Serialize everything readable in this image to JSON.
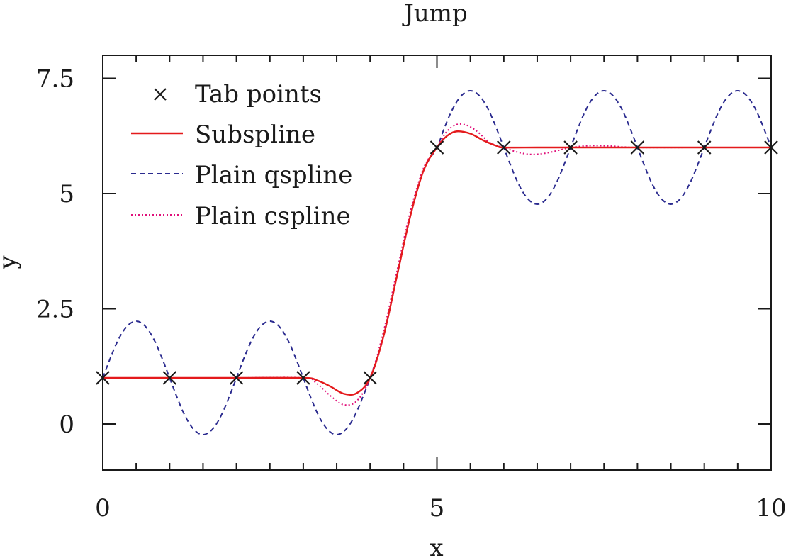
{
  "chart_data": {
    "type": "line",
    "title": "Jump",
    "xlabel": "x",
    "ylabel": "y",
    "xlim": [
      0,
      10
    ],
    "ylim": [
      -1,
      8
    ],
    "x_ticks": [
      0,
      5,
      10
    ],
    "x_tick_labels": [
      "0",
      "5",
      "10"
    ],
    "x_minor_ticks": [
      0.5,
      1,
      1.5,
      2,
      2.5,
      3,
      3.5,
      4,
      4.5,
      5.5,
      6,
      6.5,
      7,
      7.5,
      8,
      8.5,
      9,
      9.5
    ],
    "y_ticks": [
      0,
      2.5,
      5,
      7.5
    ],
    "y_tick_labels": [
      "0",
      "2.5",
      "5",
      "7.5"
    ],
    "grid": false,
    "legend_position": "top-left",
    "series": [
      {
        "name": "Tab points",
        "kind": "markers",
        "marker": "x",
        "color": "#1a1a1a",
        "x": [
          0,
          1,
          2,
          3,
          4,
          5,
          6,
          7,
          8,
          9,
          10
        ],
        "y": [
          1,
          1,
          1,
          1,
          1,
          6,
          6,
          6,
          6,
          6,
          6
        ]
      },
      {
        "name": "Subspline",
        "kind": "line",
        "dash": "solid",
        "color": "#e41a1c",
        "x": [
          0,
          1,
          2,
          3,
          3.2,
          3.4,
          3.6,
          3.8,
          4,
          4.2,
          4.4,
          4.6,
          4.8,
          5,
          5.15,
          5.3,
          5.5,
          5.7,
          5.9,
          6,
          6.5,
          7,
          8,
          9,
          10
        ],
        "y": [
          1,
          1,
          1,
          1,
          0.95,
          0.82,
          0.66,
          0.67,
          1,
          1.9,
          3.2,
          4.5,
          5.5,
          6,
          6.25,
          6.35,
          6.3,
          6.15,
          6.03,
          6,
          6,
          6,
          6,
          6,
          6
        ]
      },
      {
        "name": "Plain qspline",
        "kind": "line",
        "dash": "dashed",
        "color": "#2b2b8f",
        "x": [
          0,
          0.1,
          0.2,
          0.3,
          0.4,
          0.5,
          0.6,
          0.7,
          0.8,
          0.9,
          1,
          1.1,
          1.2,
          1.3,
          1.4,
          1.5,
          1.6,
          1.7,
          1.8,
          1.9,
          2,
          2.1,
          2.2,
          2.3,
          2.4,
          2.5,
          2.6,
          2.7,
          2.8,
          2.9,
          3,
          3.1,
          3.2,
          3.3,
          3.4,
          3.5,
          3.6,
          3.7,
          3.8,
          3.9,
          4,
          4.2,
          4.4,
          4.6,
          4.8,
          5,
          5.1,
          5.2,
          5.3,
          5.4,
          5.5,
          5.6,
          5.7,
          5.8,
          5.9,
          6,
          6.1,
          6.2,
          6.3,
          6.4,
          6.5,
          6.6,
          6.7,
          6.8,
          6.9,
          7,
          7.1,
          7.2,
          7.3,
          7.4,
          7.5,
          7.6,
          7.7,
          7.8,
          7.9,
          8,
          8.1,
          8.2,
          8.3,
          8.4,
          8.5,
          8.6,
          8.7,
          8.8,
          8.9,
          9,
          9.1,
          9.2,
          9.3,
          9.4,
          9.5,
          9.6,
          9.7,
          9.8,
          9.9,
          10
        ],
        "y": [
          1,
          1.38,
          1.73,
          2.0,
          2.17,
          2.23,
          2.17,
          2.0,
          1.73,
          1.38,
          1,
          0.62,
          0.27,
          0.0,
          -0.17,
          -0.23,
          -0.17,
          0.0,
          0.27,
          0.62,
          1,
          1.38,
          1.73,
          2.0,
          2.17,
          2.23,
          2.17,
          2.0,
          1.73,
          1.38,
          1,
          0.62,
          0.27,
          0.0,
          -0.17,
          -0.23,
          -0.17,
          0.0,
          0.27,
          0.62,
          1,
          1.9,
          3.2,
          4.5,
          5.5,
          6,
          6.38,
          6.73,
          7.0,
          7.17,
          7.23,
          7.17,
          7.0,
          6.73,
          6.38,
          6,
          5.62,
          5.27,
          5.0,
          4.83,
          4.77,
          4.83,
          5.0,
          5.27,
          5.62,
          6,
          6.38,
          6.73,
          7.0,
          7.17,
          7.23,
          7.17,
          7.0,
          6.73,
          6.38,
          6,
          5.62,
          5.27,
          5.0,
          4.83,
          4.77,
          4.83,
          5.0,
          5.27,
          5.62,
          6,
          6.38,
          6.73,
          7.0,
          7.17,
          7.23,
          7.17,
          7.0,
          6.73,
          6.38,
          6
        ]
      },
      {
        "name": "Plain cspline",
        "kind": "line",
        "dash": "dotted",
        "color": "#e0107a",
        "x": [
          0,
          1,
          2,
          3,
          3.2,
          3.4,
          3.6,
          3.8,
          4,
          4.2,
          4.4,
          4.6,
          4.8,
          5,
          5.15,
          5.3,
          5.45,
          5.6,
          5.8,
          6,
          6.2,
          6.4,
          6.6,
          6.8,
          7,
          7.3,
          7.6,
          8,
          9,
          10
        ],
        "y": [
          1,
          1,
          1,
          1,
          0.88,
          0.62,
          0.42,
          0.5,
          1,
          2.0,
          3.3,
          4.6,
          5.55,
          6,
          6.35,
          6.5,
          6.48,
          6.35,
          6.1,
          6,
          5.9,
          5.85,
          5.87,
          5.93,
          6,
          6.04,
          6.03,
          6,
          6,
          6
        ]
      }
    ]
  }
}
